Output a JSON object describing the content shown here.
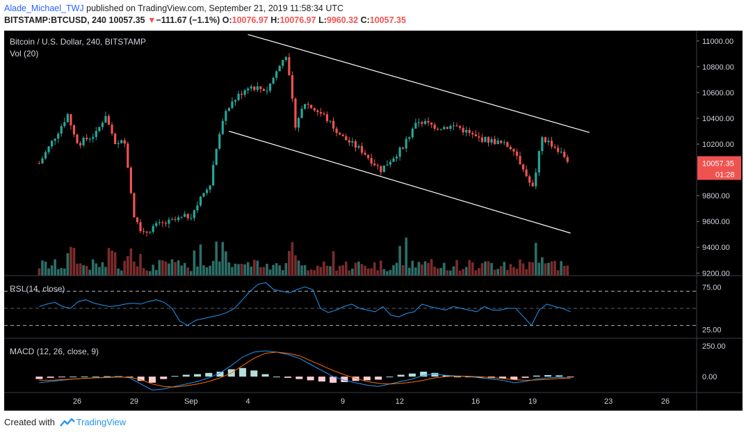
{
  "header": {
    "author": "Alade_Michael_TWJ",
    "published_text": " published on TradingView.com, September 21, 2019 11:58:34 UTC",
    "symbol": "BITSTAMP:BTCUSD, 240",
    "last": "10057.35",
    "change_arrow": "▼",
    "change": "−111.67 (−1.1%)",
    "o_label": "O:",
    "o": "10076.97",
    "h_label": "H:",
    "h": "10076.97",
    "l_label": "L:",
    "l": "9960.32",
    "c_label": "C:",
    "c": "10057.35"
  },
  "footer": {
    "created_with": "Created with",
    "brand": "TradingView"
  },
  "chart_data": {
    "type": "candlestick",
    "title": "Bitcoin / U.S. Dollar, 240, BITSTAMP",
    "volume_label": "Vol (20)",
    "x_tick_labels": [
      "26",
      "29",
      "Sep",
      "4",
      "9",
      "12",
      "16",
      "19",
      "23",
      "26"
    ],
    "price_axis": {
      "ticks": [
        "11000.00",
        "10800.00",
        "10600.00",
        "10400.00",
        "10200.00",
        "9800.00",
        "9600.00",
        "9400.00",
        "9200.00"
      ],
      "range": [
        9180,
        11080
      ]
    },
    "last_price_label": "10057.35",
    "countdown_label": "01:28",
    "channel": {
      "type": "descending channel",
      "upper_line": [
        [
          "Sep 4",
          11050
        ],
        [
          "Sep 22",
          10290
        ]
      ],
      "lower_line": [
        [
          "Sep 3",
          10300
        ],
        [
          "Sep 21",
          9510
        ]
      ]
    },
    "price_path": [
      {
        "d": "Aug 24",
        "c": 10050
      },
      {
        "d": "Aug 25",
        "c": 10300
      },
      {
        "d": "Aug 25.5",
        "c": 10430
      },
      {
        "d": "Aug 26",
        "c": 10200
      },
      {
        "d": "Aug 27",
        "c": 10280
      },
      {
        "d": "Aug 27.5",
        "c": 10430
      },
      {
        "d": "Aug 28",
        "c": 10180
      },
      {
        "d": "Aug 28.5",
        "c": 10230
      },
      {
        "d": "Aug 29",
        "c": 9650
      },
      {
        "d": "Aug 29.5",
        "c": 9500
      },
      {
        "d": "Aug 30",
        "c": 9560
      },
      {
        "d": "Aug 31",
        "c": 9600
      },
      {
        "d": "Sep 1",
        "c": 9650
      },
      {
        "d": "Sep 2",
        "c": 9900
      },
      {
        "d": "Sep 2.5",
        "c": 10300
      },
      {
        "d": "Sep 3",
        "c": 10500
      },
      {
        "d": "Sep 4",
        "c": 10650
      },
      {
        "d": "Sep 5",
        "c": 10620
      },
      {
        "d": "Sep 6",
        "c": 10900
      },
      {
        "d": "Sep 6.5",
        "c": 10350
      },
      {
        "d": "Sep 7",
        "c": 10520
      },
      {
        "d": "Sep 8",
        "c": 10420
      },
      {
        "d": "Sep 9",
        "c": 10250
      },
      {
        "d": "Sep 10",
        "c": 10150
      },
      {
        "d": "Sep 11",
        "c": 10000
      },
      {
        "d": "Sep 12",
        "c": 10150
      },
      {
        "d": "Sep 13",
        "c": 10380
      },
      {
        "d": "Sep 14",
        "c": 10330
      },
      {
        "d": "Sep 15",
        "c": 10340
      },
      {
        "d": "Sep 16",
        "c": 10250
      },
      {
        "d": "Sep 17",
        "c": 10220
      },
      {
        "d": "Sep 18",
        "c": 10170
      },
      {
        "d": "Sep 19",
        "c": 9850
      },
      {
        "d": "Sep 19.5",
        "c": 10250
      },
      {
        "d": "Sep 20",
        "c": 10200
      },
      {
        "d": "Sep 21",
        "c": 10057
      }
    ],
    "rsi": {
      "label": "RSI (14, close)",
      "ticks": [
        "75.00",
        "25.00"
      ],
      "range": [
        15,
        85
      ],
      "bands": [
        70,
        30,
        50
      ],
      "values": [
        52,
        55,
        57,
        52,
        50,
        58,
        60,
        56,
        54,
        52,
        53,
        55,
        56,
        55,
        58,
        60,
        57,
        50,
        35,
        30,
        36,
        38,
        40,
        42,
        45,
        50,
        60,
        70,
        78,
        80,
        72,
        70,
        68,
        72,
        75,
        72,
        50,
        45,
        48,
        52,
        55,
        50,
        48,
        46,
        52,
        42,
        40,
        44,
        46,
        55,
        52,
        50,
        48,
        52,
        50,
        48,
        46,
        52,
        48,
        48,
        50,
        50,
        40,
        30,
        48,
        55,
        52,
        50,
        46
      ]
    },
    "macd": {
      "label": "MACD (12, 26, close, 9)",
      "ticks": [
        "250.00",
        "0.00"
      ],
      "range": [
        -130,
        290
      ],
      "macd_line": [
        -50,
        -40,
        -30,
        -20,
        -15,
        -10,
        -5,
        0,
        -10,
        -60,
        -110,
        -100,
        -80,
        -60,
        -40,
        -10,
        30,
        90,
        160,
        200,
        210,
        200,
        180,
        150,
        100,
        50,
        0,
        -30,
        -50,
        -70,
        -80,
        -60,
        -40,
        -20,
        10,
        20,
        10,
        5,
        0,
        -10,
        -20,
        -30,
        -50,
        -40,
        -20,
        -10,
        -5,
        -15
      ],
      "signal_line": [
        -30,
        -30,
        -25,
        -20,
        -15,
        -10,
        -8,
        -4,
        -5,
        -25,
        -60,
        -80,
        -85,
        -75,
        -60,
        -40,
        -10,
        30,
        90,
        150,
        190,
        200,
        190,
        170,
        130,
        90,
        50,
        15,
        -15,
        -40,
        -55,
        -60,
        -55,
        -45,
        -30,
        -10,
        0,
        5,
        3,
        -2,
        -8,
        -15,
        -25,
        -30,
        -28,
        -22,
        -15,
        -12
      ],
      "histogram": [
        -20,
        -10,
        -5,
        0,
        0,
        0,
        3,
        4,
        -5,
        -35,
        -50,
        -20,
        5,
        15,
        20,
        30,
        40,
        60,
        70,
        50,
        20,
        0,
        -10,
        -20,
        -30,
        -40,
        -50,
        -45,
        -35,
        -30,
        -25,
        0,
        15,
        25,
        40,
        30,
        10,
        0,
        -3,
        -8,
        -12,
        -15,
        -25,
        -10,
        8,
        12,
        10,
        -3
      ]
    },
    "colors": {
      "bull": "#26a69a",
      "bear": "#ef5350",
      "bull_vol": "#2d6e67",
      "bear_vol": "#7a2c2c",
      "rsi_line": "#2196f3",
      "macd_line": "#2196f3",
      "signal_line": "#ff6d00",
      "channel": "#ffffff",
      "last_price_tag": "#ef5350"
    }
  }
}
